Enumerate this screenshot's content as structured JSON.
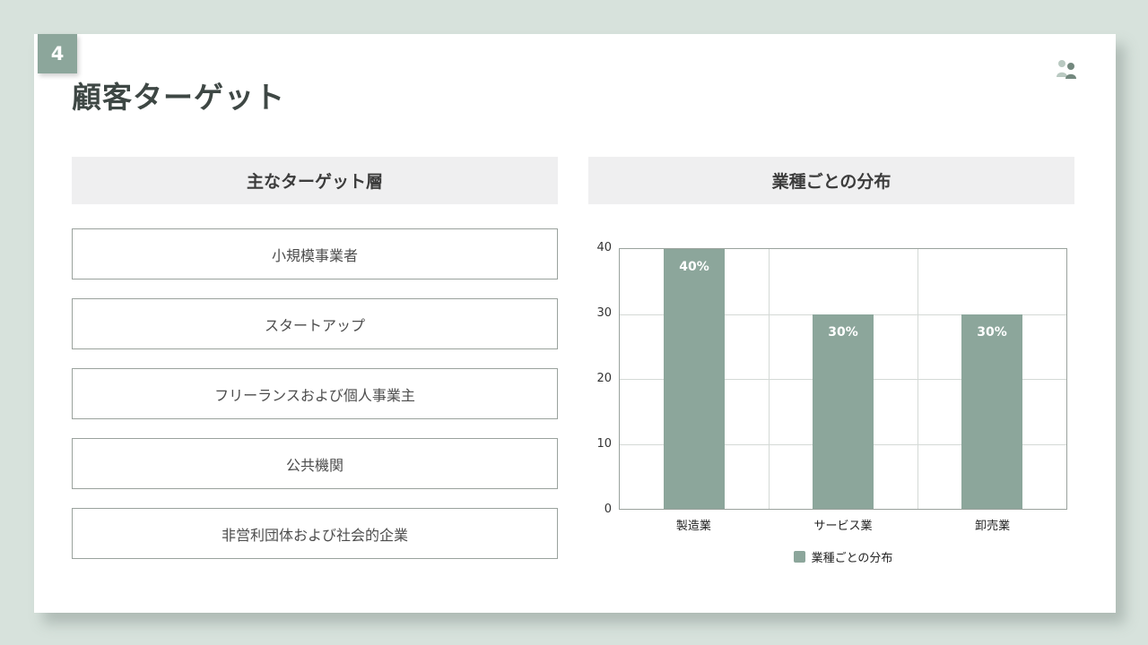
{
  "page": {
    "number": "4",
    "title": "顧客ターゲット"
  },
  "colors": {
    "background": "#d7e2dc",
    "accent": "#8ca69b",
    "panel_header_bg": "#efeff0",
    "title_text": "#3e4744",
    "bar_label_text": "#ffffff"
  },
  "left_panel": {
    "header": "主なターゲット層",
    "items": [
      "小規模事業者",
      "スタートアップ",
      "フリーランスおよび個人事業主",
      "公共機関",
      "非営利団体および社会的企業"
    ]
  },
  "right_panel": {
    "header": "業種ごとの分布"
  },
  "chart_data": {
    "type": "bar",
    "title": "業種ごとの分布",
    "categories": [
      "製造業",
      "サービス業",
      "卸売業"
    ],
    "values": [
      40,
      30,
      30
    ],
    "bar_labels": [
      "40%",
      "30%",
      "30%"
    ],
    "xlabel": "",
    "ylabel": "",
    "ylim": [
      0,
      40
    ],
    "yticks": [
      0,
      10,
      20,
      30,
      40
    ],
    "grid": true,
    "legend": "業種ごとの分布",
    "legend_position": "bottom",
    "bar_color": "#8ca69b"
  }
}
